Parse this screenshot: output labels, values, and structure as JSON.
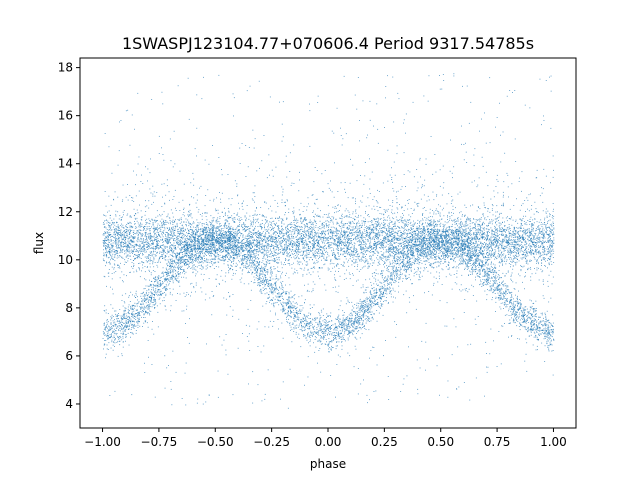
{
  "chart_data": {
    "type": "scatter",
    "title": "1SWASPJ123104.77+070606.4 Period 9317.54785s",
    "xlabel": "phase",
    "ylabel": "flux",
    "xlim": [
      -1.1,
      1.1
    ],
    "ylim": [
      3.0,
      18.4
    ],
    "xticks": [
      -1.0,
      -0.75,
      -0.5,
      -0.25,
      0.0,
      0.25,
      0.5,
      0.75,
      1.0
    ],
    "xtick_labels": [
      "−1.00",
      "−0.75",
      "−0.50",
      "−0.25",
      "0.00",
      "0.25",
      "0.50",
      "0.75",
      "1.00"
    ],
    "yticks": [
      4,
      6,
      8,
      10,
      12,
      14,
      16,
      18
    ],
    "ytick_labels": [
      "4",
      "6",
      "8",
      "10",
      "12",
      "14",
      "16",
      "18"
    ],
    "grid": false,
    "point_color": "#1f77b4",
    "series": [
      {
        "x_range": [
          -1.0,
          1.0
        ],
        "upper_band_center": 10.8,
        "lower_branch": {
          "minimum_flux": 7.0,
          "minimum_phases": [
            -1.0,
            0.0,
            1.0
          ],
          "maximum_flux": 10.8,
          "maximum_phases": [
            -0.5,
            0.5
          ]
        }
      }
    ]
  }
}
